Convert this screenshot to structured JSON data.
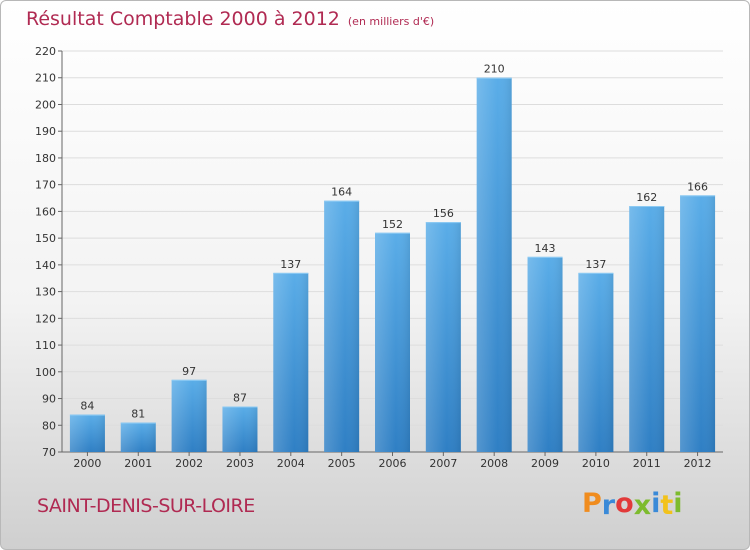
{
  "chart_data": {
    "type": "bar",
    "title": "Résultat Comptable 2000 à 2012",
    "subtitle": "(en milliers d'€)",
    "categories": [
      "2000",
      "2001",
      "2002",
      "2003",
      "2004",
      "2005",
      "2006",
      "2007",
      "2008",
      "2009",
      "2010",
      "2011",
      "2012"
    ],
    "values": [
      84,
      81,
      97,
      87,
      137,
      164,
      152,
      156,
      210,
      143,
      137,
      162,
      166
    ],
    "xlabel": "",
    "ylabel": "",
    "ylim": [
      70,
      220
    ],
    "yticks": [
      70,
      80,
      90,
      100,
      110,
      120,
      130,
      140,
      150,
      160,
      170,
      180,
      190,
      200,
      210,
      220
    ],
    "grid": true,
    "bar_color": "#4a9fe0"
  },
  "footer": {
    "location": "SAINT-DENIS-SUR-LOIRE",
    "brand_letters": [
      "P",
      "r",
      "o",
      "x",
      "i",
      "t",
      "i"
    ],
    "brand_colors": [
      "#f08c1e",
      "#3a8ad8",
      "#e23a3a",
      "#7dbb2e",
      "#3a8ad8",
      "#f2c21b",
      "#7dbb2e"
    ]
  }
}
